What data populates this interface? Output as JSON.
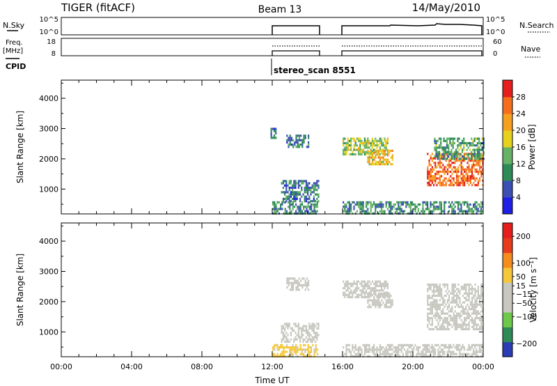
{
  "header": {
    "title": "TIGER (fitACF)",
    "beam": "Beam 13",
    "date": "14/May/2010"
  },
  "nsky_panel": {
    "left_label": "N.Sky",
    "left_ticks": [
      "10^5",
      "10^0"
    ],
    "right_label": "N.Search",
    "right_ticks": [
      "10^5",
      "10^0"
    ]
  },
  "freq_panel": {
    "left_label_line1": "Freq.",
    "left_label_line2": "[MHz]",
    "left_ticks": [
      "18",
      "8"
    ],
    "right_label": "Nave",
    "right_ticks": [
      "60",
      "0"
    ]
  },
  "cpid_panel": {
    "label": "CPID",
    "program": "stereo_scan 8551"
  },
  "chart_data": [
    {
      "type": "heatmap",
      "title": "",
      "ylabel": "Slant Range [km]",
      "yticks": [
        1000,
        2000,
        3000,
        4000
      ],
      "ylim": [
        180,
        4600
      ],
      "xlim": [
        0,
        24
      ],
      "xticks": [
        "00:00",
        "04:00",
        "08:00",
        "12:00",
        "16:00",
        "20:00",
        "00:00"
      ],
      "xlabel": "",
      "colorbar": {
        "label": "Power [dB]",
        "ticks": [
          4,
          8,
          12,
          16,
          20,
          24,
          28
        ],
        "range": [
          0,
          32
        ],
        "colors": [
          "#1e1ee6",
          "#3c50b4",
          "#2e8b57",
          "#66b266",
          "#e6d21e",
          "#f5a01e",
          "#f56e1e",
          "#e61e1e"
        ]
      },
      "data_intervals_ut": [
        [
          12.0,
          14.8
        ],
        [
          16.0,
          24.0
        ]
      ],
      "echo_regions": [
        {
          "time": [
            11.9,
            12.2
          ],
          "range": [
            2700,
            3100
          ],
          "level": 8
        },
        {
          "time": [
            12.8,
            14.1
          ],
          "range": [
            2400,
            2800
          ],
          "level": 8
        },
        {
          "time": [
            12.5,
            14.6
          ],
          "range": [
            600,
            1300
          ],
          "level": 8
        },
        {
          "time": [
            12.0,
            14.6
          ],
          "range": [
            200,
            600
          ],
          "level": 10
        },
        {
          "time": [
            16.0,
            18.6
          ],
          "range": [
            2150,
            2700
          ],
          "level": 16
        },
        {
          "time": [
            17.4,
            18.8
          ],
          "range": [
            1800,
            2300
          ],
          "level": 20
        },
        {
          "time": [
            20.8,
            24.0
          ],
          "range": [
            1100,
            2200
          ],
          "level": 26
        },
        {
          "time": [
            21.2,
            24.0
          ],
          "range": [
            2000,
            2700
          ],
          "level": 12
        },
        {
          "time": [
            16.0,
            24.0
          ],
          "range": [
            200,
            600
          ],
          "level": 10
        }
      ]
    },
    {
      "type": "heatmap",
      "title": "",
      "ylabel": "Slant Range [km]",
      "yticks": [
        1000,
        2000,
        3000,
        4000
      ],
      "ylim": [
        180,
        4600
      ],
      "xlim": [
        0,
        24
      ],
      "xticks": [
        "00:00",
        "04:00",
        "08:00",
        "12:00",
        "16:00",
        "20:00",
        "00:00"
      ],
      "xlabel": "Time UT",
      "colorbar": {
        "label": "Velocity [m s^-1]",
        "ticks": [
          200,
          100,
          50,
          15,
          -15,
          -50,
          -100,
          -200
        ],
        "ticks_display": [
          "200",
          "100",
          "50",
          "15",
          "−15",
          "−50",
          "−100",
          "−200"
        ],
        "range": [
          -250,
          250
        ],
        "colors": [
          "#2c3cb4",
          "#2e8b57",
          "#6ec84a",
          "#c8c8c0",
          "#c8c8c0",
          "#f5c83c",
          "#f58c1e",
          "#e63c1e",
          "#e61e1e"
        ]
      },
      "data_intervals_ut": [
        [
          12.0,
          14.8
        ],
        [
          16.0,
          24.0
        ]
      ],
      "echo_regions": [
        {
          "time": [
            12.8,
            14.1
          ],
          "range": [
            2400,
            2800
          ],
          "velocity": 0
        },
        {
          "time": [
            12.5,
            14.6
          ],
          "range": [
            700,
            1300
          ],
          "velocity": 0
        },
        {
          "time": [
            12.0,
            14.6
          ],
          "range": [
            200,
            600
          ],
          "velocity": 40
        },
        {
          "time": [
            16.0,
            18.6
          ],
          "range": [
            2150,
            2700
          ],
          "velocity": 0
        },
        {
          "time": [
            17.4,
            18.8
          ],
          "range": [
            1800,
            2300
          ],
          "velocity": 0
        },
        {
          "time": [
            20.8,
            24.0
          ],
          "range": [
            1100,
            2600
          ],
          "velocity": 0
        },
        {
          "time": [
            16.0,
            24.0
          ],
          "range": [
            200,
            600
          ],
          "velocity": -60
        }
      ]
    }
  ],
  "colors": {
    "axis": "#000000",
    "background": "#ffffff"
  }
}
